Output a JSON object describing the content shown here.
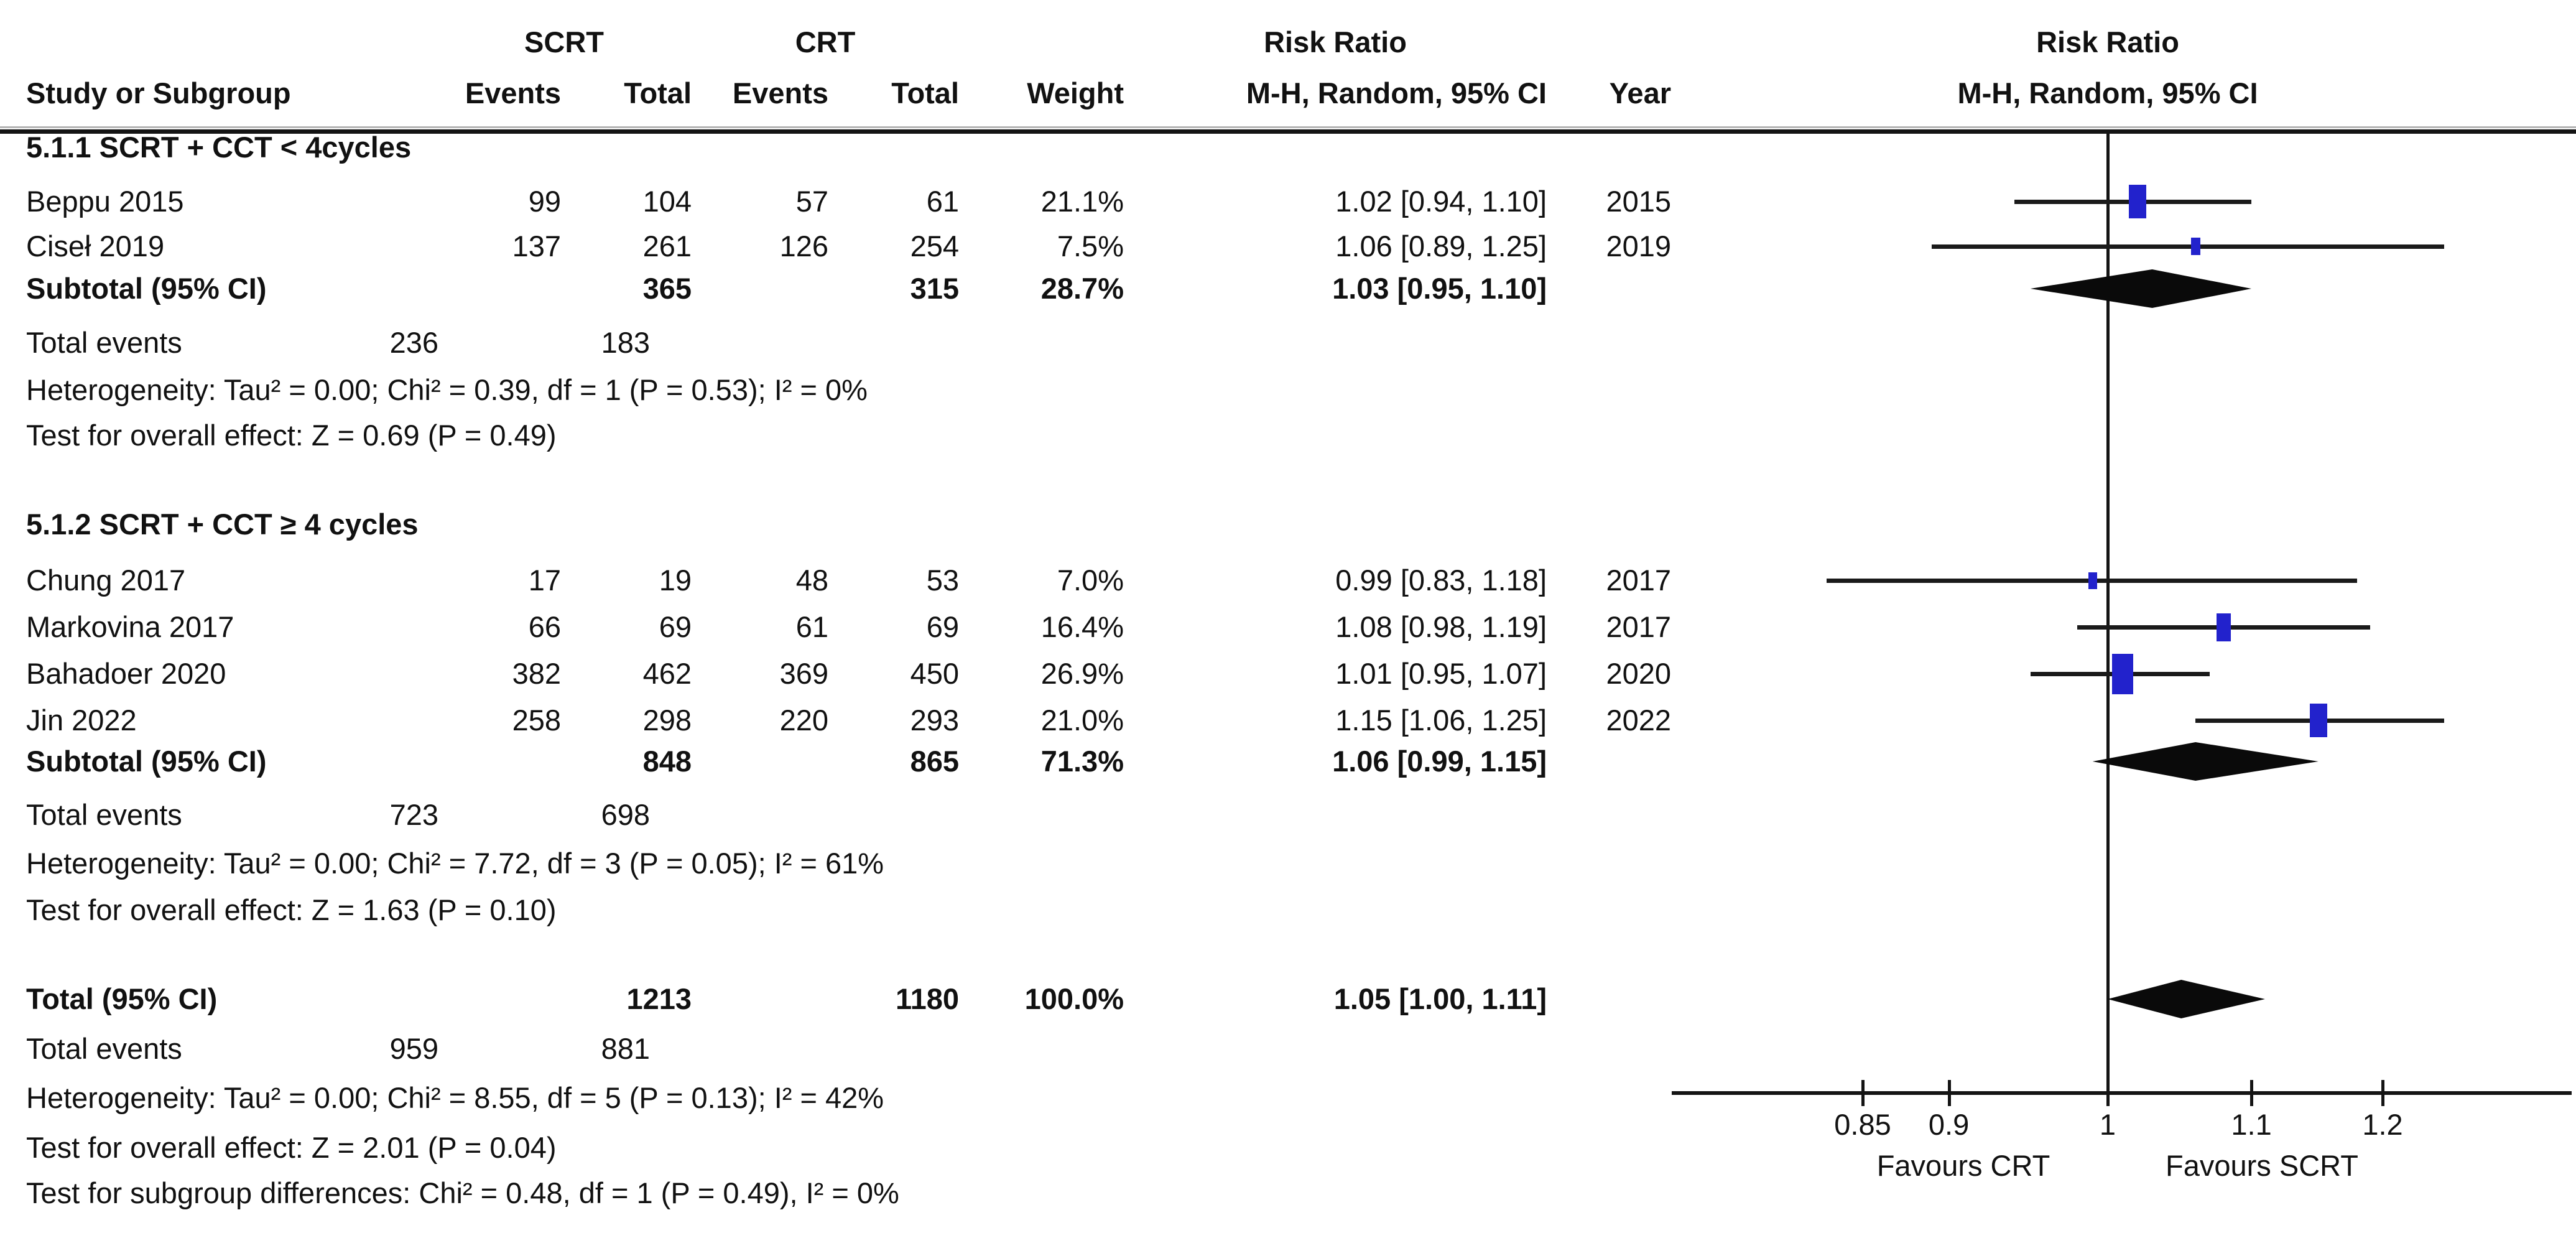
{
  "header": {
    "study": "Study or Subgroup",
    "group1": "SCRT",
    "group2": "CRT",
    "events": "Events",
    "total": "Total",
    "weight": "Weight",
    "rr_line1": "Risk Ratio",
    "rr_line2": "M-H, Random, 95% CI",
    "year": "Year",
    "plot_line1": "Risk Ratio",
    "plot_line2": "M-H, Random, 95% CI"
  },
  "chart_data": {
    "type": "forest",
    "effect_measure": "Risk Ratio",
    "method": "M-H, Random, 95% CI",
    "x_scale": "log10",
    "axis_ticks": [
      "0.85",
      "0.9",
      "1",
      "1.1",
      "1.2"
    ],
    "null_value": 1,
    "favours_left": "Favours CRT",
    "favours_right": "Favours SCRT",
    "marker_color": "#2222cc",
    "line_color": "#141414",
    "subgroups": [
      {
        "title": "5.1.1 SCRT + CCT < 4cycles",
        "studies": [
          {
            "name": "Beppu 2015",
            "e1": "99",
            "t1": "104",
            "e2": "57",
            "t2": "61",
            "weight": "21.1%",
            "w": 21.1,
            "rr": 1.02,
            "lo": 0.94,
            "hi": 1.1,
            "ci": "1.02 [0.94, 1.10]",
            "year": "2015"
          },
          {
            "name": "Ciseł 2019",
            "e1": "137",
            "t1": "261",
            "e2": "126",
            "t2": "254",
            "weight": "7.5%",
            "w": 7.5,
            "rr": 1.06,
            "lo": 0.89,
            "hi": 1.25,
            "ci": "1.06 [0.89, 1.25]",
            "year": "2019"
          }
        ],
        "subtotal": {
          "label": "Subtotal (95% CI)",
          "t1": "365",
          "t2": "315",
          "weight": "28.7%",
          "rr": 1.03,
          "lo": 0.95,
          "hi": 1.1,
          "ci": "1.03 [0.95, 1.10]"
        },
        "total_events": {
          "label": "Total events",
          "e1": "236",
          "e2": "183"
        },
        "heterogeneity": "Heterogeneity: Tau² = 0.00; Chi² = 0.39, df = 1 (P = 0.53); I² = 0%",
        "overall": "Test for overall effect: Z = 0.69 (P = 0.49)"
      },
      {
        "title": "5.1.2 SCRT + CCT ≥ 4 cycles",
        "studies": [
          {
            "name": "Chung 2017",
            "e1": "17",
            "t1": "19",
            "e2": "48",
            "t2": "53",
            "weight": "7.0%",
            "w": 7.0,
            "rr": 0.99,
            "lo": 0.83,
            "hi": 1.18,
            "ci": "0.99 [0.83, 1.18]",
            "year": "2017"
          },
          {
            "name": "Markovina 2017",
            "e1": "66",
            "t1": "69",
            "e2": "61",
            "t2": "69",
            "weight": "16.4%",
            "w": 16.4,
            "rr": 1.08,
            "lo": 0.98,
            "hi": 1.19,
            "ci": "1.08 [0.98, 1.19]",
            "year": "2017"
          },
          {
            "name": "Bahadoer 2020",
            "e1": "382",
            "t1": "462",
            "e2": "369",
            "t2": "450",
            "weight": "26.9%",
            "w": 26.9,
            "rr": 1.01,
            "lo": 0.95,
            "hi": 1.07,
            "ci": "1.01 [0.95, 1.07]",
            "year": "2020"
          },
          {
            "name": "Jin 2022",
            "e1": "258",
            "t1": "298",
            "e2": "220",
            "t2": "293",
            "weight": "21.0%",
            "w": 21.0,
            "rr": 1.15,
            "lo": 1.06,
            "hi": 1.25,
            "ci": "1.15 [1.06, 1.25]",
            "year": "2022"
          }
        ],
        "subtotal": {
          "label": "Subtotal (95% CI)",
          "t1": "848",
          "t2": "865",
          "weight": "71.3%",
          "rr": 1.06,
          "lo": 0.99,
          "hi": 1.15,
          "ci": "1.06 [0.99, 1.15]"
        },
        "total_events": {
          "label": "Total events",
          "e1": "723",
          "e2": "698"
        },
        "heterogeneity": "Heterogeneity: Tau² = 0.00; Chi² = 7.72, df = 3 (P = 0.05); I² = 61%",
        "overall": "Test for overall effect: Z = 1.63 (P = 0.10)"
      }
    ],
    "total": {
      "label": "Total (95% CI)",
      "t1": "1213",
      "t2": "1180",
      "weight": "100.0%",
      "rr": 1.05,
      "lo": 1.0,
      "hi": 1.11,
      "ci": "1.05 [1.00, 1.11]"
    },
    "total_events": {
      "label": "Total events",
      "e1": "959",
      "e2": "881"
    },
    "footer": [
      "Heterogeneity: Tau² = 0.00; Chi² = 8.55, df = 5 (P = 0.13); I² = 42%",
      "Test for overall effect: Z = 2.01 (P = 0.04)",
      "Test for subgroup differences: Chi² = 0.48, df = 1 (P = 0.49), I² = 0%"
    ]
  }
}
